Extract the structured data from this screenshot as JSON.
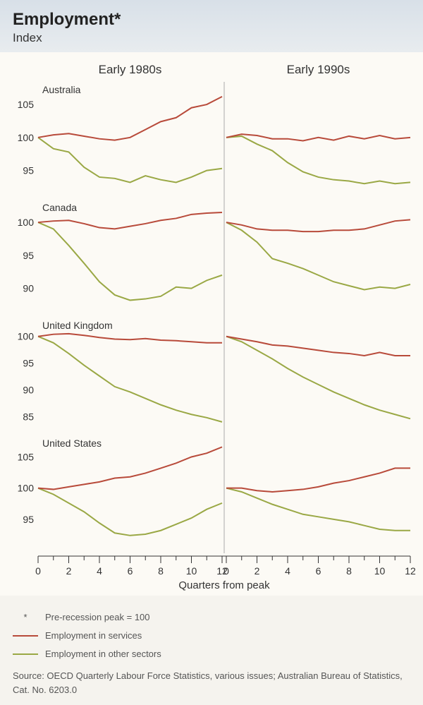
{
  "header": {
    "title": "Employment*",
    "subtitle": "Index"
  },
  "columns": [
    {
      "label": "Early 1980s"
    },
    {
      "label": "Early 1990s"
    }
  ],
  "xaxis": {
    "label": "Quarters from peak",
    "min": 0,
    "max": 12,
    "ticks_major": [
      0,
      2,
      4,
      6,
      8,
      10,
      12
    ],
    "ticks_minor": [
      1,
      3,
      5,
      7,
      9,
      11
    ]
  },
  "colors": {
    "services": "#b84a3a",
    "other": "#9aa845",
    "background": "#fcfaf5",
    "text": "#333333",
    "divider": "#aaaaaa",
    "header_bg_top": "#d8e0e8",
    "header_bg_bot": "#e8ecef"
  },
  "line_width": 2,
  "panels": [
    {
      "country": "Australia",
      "ylim": [
        91,
        108
      ],
      "yticks": [
        95,
        100,
        105
      ],
      "left": {
        "services": [
          100,
          100.4,
          100.6,
          100.2,
          99.8,
          99.6,
          100.0,
          101.2,
          102.4,
          103.0,
          104.5,
          105.0,
          106.2
        ],
        "other": [
          100,
          98.3,
          97.8,
          95.5,
          94.0,
          93.8,
          93.2,
          94.2,
          93.6,
          93.2,
          94.0,
          95.0,
          95.3
        ]
      },
      "right": {
        "services": [
          100,
          100.5,
          100.3,
          99.8,
          99.8,
          99.5,
          100.0,
          99.6,
          100.2,
          99.8,
          100.3,
          99.8,
          100.0
        ],
        "other": [
          100,
          100.2,
          99.0,
          98.0,
          96.2,
          94.8,
          94.0,
          93.6,
          93.4,
          93.0,
          93.4,
          93.0,
          93.2
        ]
      }
    },
    {
      "country": "Canada",
      "ylim": [
        86,
        103
      ],
      "yticks": [
        90,
        95,
        100
      ],
      "left": {
        "services": [
          100,
          100.2,
          100.3,
          99.8,
          99.2,
          99.0,
          99.4,
          99.8,
          100.3,
          100.6,
          101.2,
          101.4,
          101.5
        ],
        "other": [
          100,
          99.0,
          96.5,
          93.8,
          91.0,
          89.0,
          88.2,
          88.4,
          88.8,
          90.2,
          90.0,
          91.2,
          92.0
        ]
      },
      "right": {
        "services": [
          100,
          99.6,
          99.0,
          98.8,
          98.8,
          98.6,
          98.6,
          98.8,
          98.8,
          99.0,
          99.6,
          100.2,
          100.4
        ],
        "other": [
          100,
          98.8,
          97.0,
          94.5,
          93.8,
          93.0,
          92.0,
          91.0,
          90.4,
          89.8,
          90.2,
          90.0,
          90.6
        ]
      }
    },
    {
      "country": "United Kingdom",
      "ylim": [
        82,
        103
      ],
      "yticks": [
        85,
        90,
        95,
        100
      ],
      "left": {
        "services": [
          100,
          100.4,
          100.5,
          100.2,
          99.8,
          99.5,
          99.4,
          99.6,
          99.3,
          99.2,
          99.0,
          98.8,
          98.8
        ],
        "other": [
          100,
          98.8,
          96.8,
          94.6,
          92.6,
          90.6,
          89.6,
          88.4,
          87.2,
          86.2,
          85.4,
          84.8,
          84.0
        ]
      },
      "right": {
        "services": [
          100,
          99.5,
          99.0,
          98.4,
          98.2,
          97.8,
          97.4,
          97.0,
          96.8,
          96.4,
          97.0,
          96.4,
          96.4
        ],
        "other": [
          100,
          99.0,
          97.4,
          95.8,
          94.0,
          92.4,
          91.0,
          89.6,
          88.4,
          87.2,
          86.2,
          85.4,
          84.6
        ]
      }
    },
    {
      "country": "United States",
      "ylim": [
        90,
        108
      ],
      "yticks": [
        95,
        100,
        105
      ],
      "left": {
        "services": [
          100,
          99.8,
          100.2,
          100.6,
          101.0,
          101.6,
          101.8,
          102.4,
          103.2,
          104.0,
          105.0,
          105.6,
          106.6
        ],
        "other": [
          100,
          99.0,
          97.6,
          96.2,
          94.4,
          92.8,
          92.4,
          92.6,
          93.2,
          94.2,
          95.2,
          96.6,
          97.6
        ]
      },
      "right": {
        "services": [
          100,
          100.0,
          99.6,
          99.4,
          99.6,
          99.8,
          100.2,
          100.8,
          101.2,
          101.8,
          102.4,
          103.2,
          103.2
        ],
        "other": [
          100,
          99.4,
          98.4,
          97.4,
          96.6,
          95.8,
          95.4,
          95.0,
          94.6,
          94.0,
          93.4,
          93.2,
          93.2
        ]
      }
    }
  ],
  "legend": {
    "note": "Pre-recession peak = 100",
    "note_symbol": "*",
    "items": [
      {
        "label": "Employment in services",
        "color_key": "services"
      },
      {
        "label": "Employment in other sectors",
        "color_key": "other"
      }
    ]
  },
  "source": "Source: OECD Quarterly Labour Force Statistics, various issues; Australian Bureau of Statistics, Cat. No. 6203.0"
}
